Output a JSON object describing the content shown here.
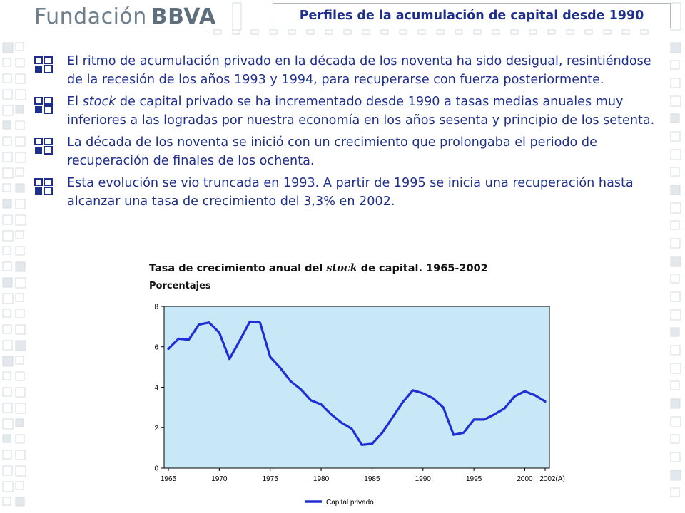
{
  "header": {
    "logo_text": "Fundación",
    "logo_brand": "BBVA",
    "slide_title": "Perfiles de la acumulación de capital desde 1990"
  },
  "bullets": [
    {
      "parts": [
        "El ritmo de acumulación privado en la década de los noventa ha sido desigual, resintiéndose de la recesión de los años 1993 y 1994, para recuperarse con fuerza posteriormente."
      ]
    },
    {
      "parts": [
        "El ",
        "stock",
        " de capital privado se ha incrementado desde 1990 a tasas medias anuales muy inferiores a las logradas por nuestra economía en los años sesenta y principio de los setenta."
      ]
    },
    {
      "parts": [
        "La década de los noventa se inició con un crecimiento que prolongaba el periodo de recuperación de finales de los ochenta."
      ]
    },
    {
      "parts": [
        "Esta evolución se vio truncada en 1993. A partir de 1995 se inicia una recuperación hasta alcanzar una tasa de crecimiento del 3,3% en 2002."
      ]
    }
  ],
  "chart_data": {
    "type": "line",
    "title_parts": [
      "Tasa de crecimiento anual del ",
      "stock",
      " de capital. 1965-2002"
    ],
    "subtitle": "Porcentajes",
    "xlabel": "",
    "ylabel": "",
    "x_ticks": [
      "1965",
      "1970",
      "1975",
      "1980",
      "1985",
      "1990",
      "1995",
      "2000",
      "2002(A)"
    ],
    "y_ticks": [
      "0",
      "2",
      "4",
      "6",
      "8"
    ],
    "xlim": [
      1965,
      2002
    ],
    "ylim": [
      0,
      8
    ],
    "grid": false,
    "legend_position": "bottom",
    "plot_background": "#c8e8f8",
    "series": [
      {
        "name": "Capital privado",
        "color": "#1f2fd6",
        "x": [
          1965,
          1966,
          1967,
          1968,
          1969,
          1970,
          1971,
          1972,
          1973,
          1974,
          1975,
          1976,
          1977,
          1978,
          1979,
          1980,
          1981,
          1982,
          1983,
          1984,
          1985,
          1986,
          1987,
          1988,
          1989,
          1990,
          1991,
          1992,
          1993,
          1994,
          1995,
          1996,
          1997,
          1998,
          1999,
          2000,
          2001,
          2002
        ],
        "values": [
          5.9,
          6.4,
          6.35,
          7.1,
          7.2,
          6.7,
          5.4,
          6.3,
          7.25,
          7.2,
          5.5,
          4.95,
          4.3,
          3.9,
          3.35,
          3.15,
          2.65,
          2.25,
          1.95,
          1.15,
          1.2,
          1.75,
          2.5,
          3.25,
          3.85,
          3.7,
          3.45,
          3.0,
          1.65,
          1.75,
          2.4,
          2.4,
          2.65,
          2.95,
          3.55,
          3.8,
          3.6,
          3.3
        ]
      }
    ]
  }
}
